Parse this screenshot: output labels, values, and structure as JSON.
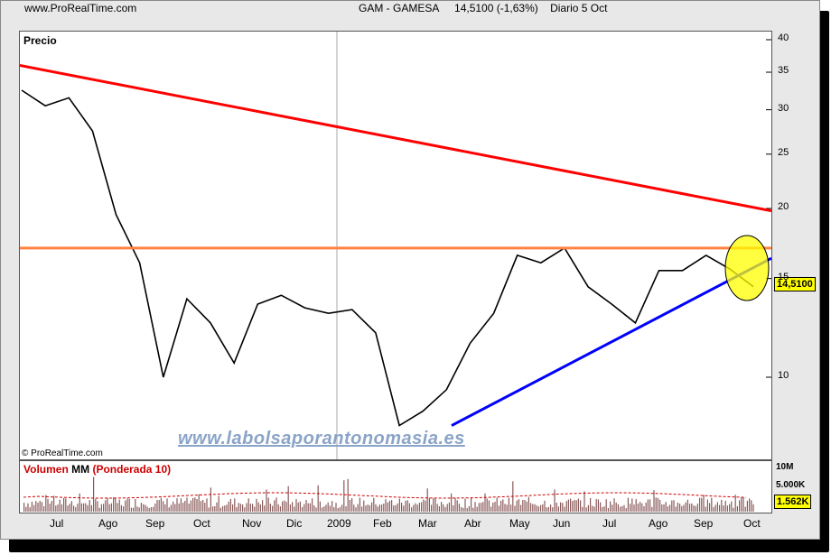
{
  "header": {
    "site": "www.ProRealTime.com",
    "instrument": "GAM - GAMESA",
    "price_change": "14,5100 (-1,63%)",
    "period": "Diario  5 Oct"
  },
  "watermark": "www.labolsaporantonomasia.es",
  "copyright": "© ProRealTime.com",
  "price_panel": {
    "label": "Precio",
    "last_badge": "14,5100",
    "colors": {
      "resistance": "#ff0000",
      "horizontal": "#ff8040",
      "support": "#0000ff",
      "highlight": "#ffff00"
    }
  },
  "volume_panel": {
    "label": "Volumen MM (Ponderada 10)",
    "label_colors": [
      "#cc0000",
      "#000000",
      "#cc0000"
    ],
    "ticks": [
      "10M",
      "5.000K"
    ],
    "last_badge": "1.562K"
  },
  "chart_data": [
    {
      "type": "line",
      "title": "Precio",
      "y_scale": "log",
      "ylim": [
        8,
        41
      ],
      "y_ticks": [
        10,
        15,
        20,
        25,
        30,
        35,
        40
      ],
      "x_ticks": [
        "Jul",
        "Ago",
        "Sep",
        "Oct",
        "Nov",
        "Dic",
        "2009",
        "Feb",
        "Mar",
        "Abr",
        "May",
        "Jun",
        "Jul",
        "Ago",
        "Sep",
        "Oct"
      ],
      "series": [
        {
          "x": [
            "Jul",
            "Ago",
            "Sep",
            "Oct",
            "Oct",
            "Oct",
            "Nov",
            "Nov",
            "Nov",
            "Dic",
            "Dic",
            "2009",
            "2009",
            "Feb",
            "Feb",
            "Mar",
            "Mar",
            "Mar",
            "Abr",
            "Abr",
            "May",
            "May",
            "Jun",
            "Jun",
            "Jun",
            "Jul",
            "Jul",
            "Ago",
            "Sep",
            "Sep",
            "Oct",
            "Oct"
          ],
          "values": [
            32.5,
            30.5,
            31.5,
            27.5,
            19.5,
            16.0,
            10.0,
            13.8,
            12.5,
            10.6,
            13.5,
            14.0,
            13.3,
            13.0,
            13.2,
            12.0,
            8.2,
            8.7,
            9.5,
            11.5,
            13.0,
            16.5,
            16.0,
            17.0,
            14.5,
            13.5,
            12.5,
            15.5,
            15.5,
            16.5,
            15.6,
            14.51
          ]
        }
      ],
      "annotations": [
        {
          "type": "trendline",
          "name": "resistance",
          "from": [
            "Jun 2008",
            36.0
          ],
          "to": [
            "Oct",
            19.8
          ]
        },
        {
          "type": "hline",
          "value": 17.0
        },
        {
          "type": "trendline",
          "name": "support",
          "from": [
            "Mar",
            8.2
          ],
          "to": [
            "Oct",
            16.3
          ]
        }
      ]
    },
    {
      "type": "bar",
      "title": "Volumen MM (Ponderada 10)",
      "y_ticks": [
        "10M",
        "5.000K"
      ],
      "last_value": "1.562K"
    }
  ]
}
